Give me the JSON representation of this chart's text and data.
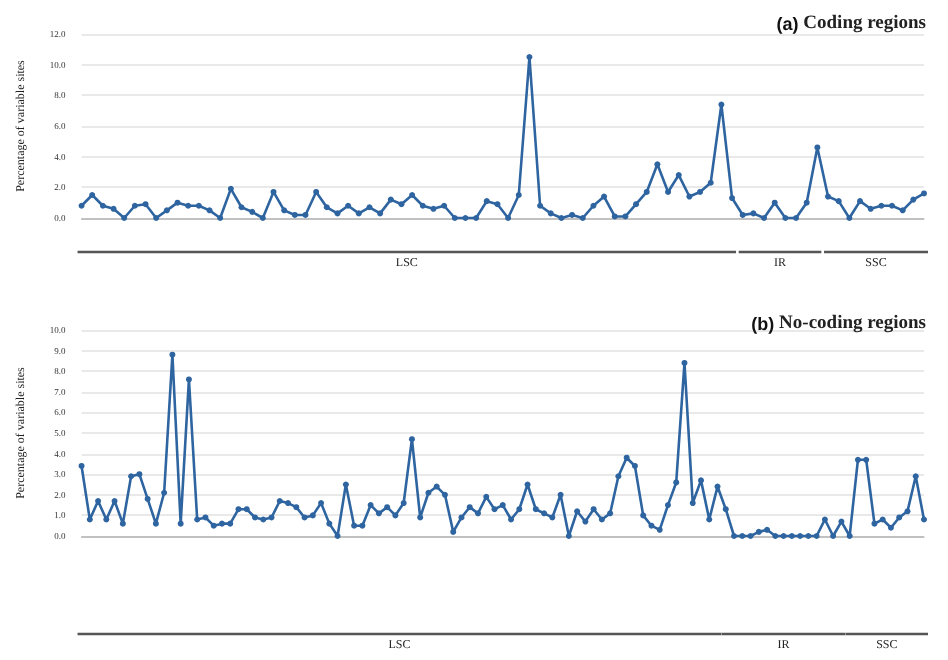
{
  "chart_data": [
    {
      "type": "line",
      "title": "(a) Coding regions",
      "ylabel": "Percentage of variable sites",
      "color": "#2e64a0",
      "marker": "circle",
      "grid": "y",
      "categories": [
        null,
        null,
        null,
        null,
        null,
        null,
        null,
        null,
        null,
        null,
        null,
        null,
        null,
        null,
        null,
        null,
        null,
        null,
        null,
        null,
        null,
        null,
        null,
        null,
        null,
        null,
        null,
        null,
        null,
        null,
        null,
        null,
        null,
        null,
        null,
        null,
        null,
        null,
        null,
        null,
        null,
        null,
        null,
        null,
        null,
        null,
        null,
        null,
        null,
        null,
        null,
        null,
        null,
        null,
        null,
        null,
        null,
        null,
        null,
        null,
        null,
        null,
        null,
        null,
        null,
        null,
        null,
        null,
        null,
        null,
        null,
        null,
        null,
        null,
        null,
        null,
        null,
        null,
        null,
        null
      ],
      "values": [
        0.8,
        1.5,
        0.8,
        0.6,
        0.0,
        0.8,
        0.9,
        0.0,
        0.5,
        1.0,
        0.8,
        0.8,
        0.5,
        0.0,
        1.9,
        0.7,
        0.4,
        0.0,
        1.7,
        0.5,
        0.2,
        0.2,
        1.7,
        0.7,
        0.3,
        0.8,
        0.3,
        0.7,
        0.3,
        1.2,
        0.9,
        1.5,
        0.8,
        0.6,
        0.8,
        0.0,
        0.0,
        0.0,
        1.1,
        0.9,
        0.0,
        1.5,
        10.5,
        0.8,
        0.3,
        0.0,
        0.2,
        0.0,
        0.8,
        1.4,
        0.1,
        0.1,
        0.9,
        1.7,
        3.5,
        1.7,
        2.8,
        1.4,
        1.7,
        2.3,
        7.4,
        1.3,
        0.2,
        0.3,
        0.0,
        1.0,
        0.0,
        0.0,
        1.0,
        4.6,
        1.4,
        1.1,
        0.0,
        1.1,
        0.6,
        0.8,
        0.8,
        0.5,
        1.2,
        1.6
      ],
      "ylim": [
        0,
        12
      ],
      "yticks": [
        {
          "value": 0,
          "label": "0.0"
        },
        {
          "value": 2,
          "label": "2.0"
        },
        {
          "value": 4,
          "label": "4.0"
        },
        {
          "value": 6,
          "label": "6.0"
        },
        {
          "value": 8,
          "label": "8.0"
        },
        {
          "value": 10,
          "label": "10.0"
        },
        {
          "value": 12,
          "label": "12.0"
        }
      ],
      "annotations": [
        "LSC",
        "IR",
        "SSC"
      ]
    },
    {
      "type": "line",
      "title": "(b) No-coding regions",
      "ylabel": "Percentage of variable sites",
      "color": "#2e64a0",
      "marker": "circle",
      "grid": "y",
      "categories": [
        null,
        null,
        null,
        null,
        null,
        null,
        null,
        null,
        null,
        null,
        null,
        null,
        null,
        null,
        null,
        null,
        null,
        null,
        null,
        null,
        null,
        null,
        null,
        null,
        null,
        null,
        null,
        null,
        null,
        null,
        null,
        null,
        null,
        null,
        null,
        null,
        null,
        null,
        null,
        null,
        null,
        null,
        null,
        null,
        null,
        null,
        null,
        null,
        null,
        null,
        null,
        null,
        null,
        null,
        null,
        null,
        null,
        null,
        null,
        null,
        null,
        null,
        null,
        null,
        null,
        null,
        null,
        null,
        null,
        null,
        null,
        null,
        null,
        null,
        null,
        null,
        null,
        null,
        null,
        null,
        null,
        null,
        null,
        null,
        null,
        null,
        null,
        null,
        null,
        null,
        null,
        null,
        null,
        null,
        null,
        null,
        null,
        null,
        null,
        null,
        null,
        null,
        null
      ],
      "values": [
        3.4,
        0.8,
        1.7,
        0.8,
        1.7,
        0.6,
        2.9,
        3.0,
        1.8,
        0.6,
        2.1,
        8.8,
        0.6,
        7.6,
        0.8,
        0.9,
        0.5,
        0.6,
        0.6,
        1.3,
        1.3,
        0.9,
        0.8,
        0.9,
        1.7,
        1.6,
        1.4,
        0.9,
        1.0,
        1.6,
        0.6,
        0.0,
        2.5,
        0.5,
        0.5,
        1.5,
        1.1,
        1.4,
        1.0,
        1.6,
        4.7,
        0.9,
        2.1,
        2.4,
        2.0,
        0.2,
        0.9,
        1.4,
        1.1,
        1.9,
        1.3,
        1.5,
        0.8,
        1.3,
        2.5,
        1.3,
        1.1,
        0.9,
        2.0,
        0.0,
        1.2,
        0.7,
        1.3,
        0.8,
        1.1,
        2.9,
        3.8,
        3.4,
        1.0,
        0.5,
        0.3,
        1.5,
        2.6,
        8.4,
        1.6,
        2.7,
        0.8,
        2.4,
        1.3,
        0.0,
        0.0,
        0.0,
        0.2,
        0.3,
        0.0,
        0.0,
        0.0,
        0.0,
        0.0,
        0.0,
        0.8,
        0.0,
        0.7,
        0.0,
        3.7,
        3.7,
        0.6,
        0.8,
        0.4,
        0.9,
        1.2,
        2.9,
        0.8
      ],
      "ylim": [
        0,
        10
      ],
      "yticks": [
        {
          "value": 0,
          "label": "0.0"
        },
        {
          "value": 1,
          "label": "1.0"
        },
        {
          "value": 2,
          "label": "2.0"
        },
        {
          "value": 3,
          "label": "3.0"
        },
        {
          "value": 4,
          "label": "4.0"
        },
        {
          "value": 5,
          "label": "5.0"
        },
        {
          "value": 6,
          "label": "6.0"
        },
        {
          "value": 7,
          "label": "7.0"
        },
        {
          "value": 8,
          "label": "8.0"
        },
        {
          "value": 9,
          "label": "9.0"
        },
        {
          "value": 10,
          "label": "10.0"
        }
      ],
      "annotations": [
        "LSC",
        "IR",
        "SSC"
      ]
    }
  ]
}
